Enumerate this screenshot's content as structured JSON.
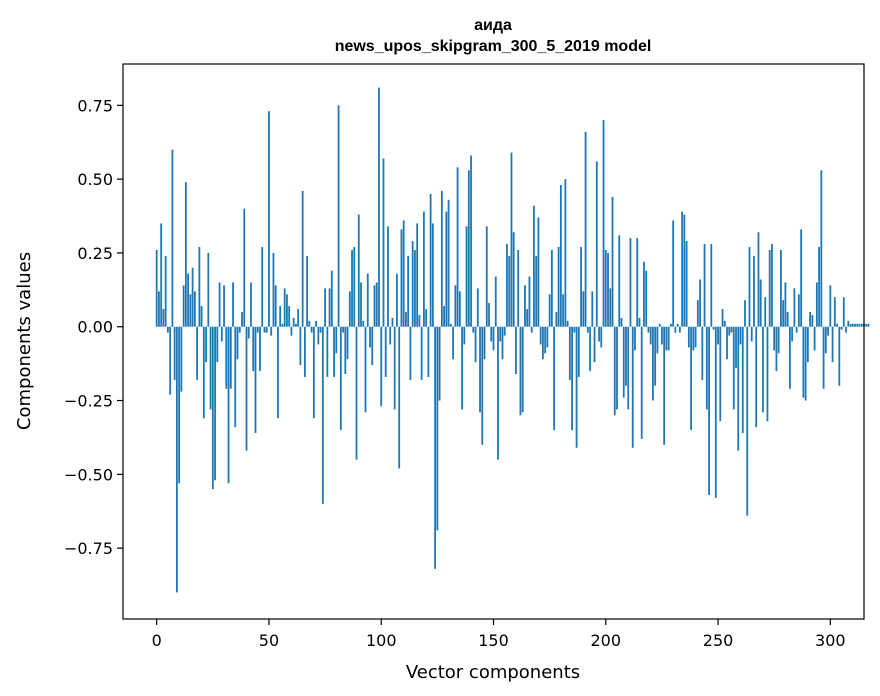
{
  "chart_data": {
    "type": "bar",
    "title": "аида",
    "subtitle": "news_upos_skipgram_300_5_2019 model",
    "xlabel": "Vector components",
    "ylabel": "Components values",
    "xlim": [
      -15,
      315
    ],
    "ylim": [
      -0.99,
      0.89
    ],
    "xticks": [
      0,
      50,
      100,
      150,
      200,
      250,
      300
    ],
    "yticks": [
      0.75,
      0.5,
      0.25,
      0.0,
      -0.25,
      -0.5,
      -0.75
    ],
    "ytick_labels": [
      "0.75",
      "0.50",
      "0.25",
      "0.00",
      "−0.25",
      "−0.50",
      "−0.75"
    ],
    "xtick_labels": [
      "0",
      "50",
      "100",
      "150",
      "200",
      "250",
      "300"
    ],
    "color": "#1f77b4",
    "values": [
      0.26,
      0.12,
      0.35,
      0.06,
      0.24,
      -0.02,
      -0.23,
      0.6,
      -0.18,
      -0.9,
      -0.53,
      -0.22,
      0.14,
      0.49,
      0.18,
      0.11,
      0.2,
      0.12,
      -0.18,
      0.27,
      0.07,
      -0.31,
      -0.12,
      0.25,
      -0.28,
      -0.55,
      -0.52,
      -0.12,
      0.15,
      -0.05,
      0.14,
      -0.21,
      -0.53,
      -0.21,
      0.15,
      -0.34,
      -0.11,
      -0.02,
      0.05,
      0.4,
      -0.42,
      -0.04,
      0.15,
      -0.15,
      -0.36,
      -0.02,
      -0.15,
      0.27,
      -0.02,
      -0.02,
      0.73,
      -0.03,
      0.25,
      0.14,
      -0.31,
      0.07,
      0.01,
      0.13,
      0.11,
      0.07,
      -0.03,
      0.03,
      0.01,
      0.06,
      -0.13,
      0.46,
      -0.17,
      0.24,
      0.02,
      -0.02,
      -0.31,
      0.02,
      -0.06,
      -0.02,
      -0.6,
      0.13,
      -0.17,
      0.13,
      0.19,
      -0.17,
      -0.09,
      0.75,
      -0.35,
      -0.02,
      -0.16,
      -0.11,
      0.12,
      0.26,
      0.27,
      -0.45,
      0.38,
      0.15,
      0.02,
      -0.29,
      0.18,
      -0.07,
      -0.13,
      0.14,
      0.15,
      0.81,
      -0.27,
      0.57,
      -0.17,
      0.34,
      -0.06,
      0.03,
      -0.28,
      0.18,
      -0.48,
      0.33,
      0.36,
      0.05,
      0.24,
      -0.18,
      0.29,
      0.26,
      0.35,
      0.04,
      -0.18,
      0.39,
      0.06,
      -0.17,
      0.45,
      0.35,
      -0.82,
      -0.69,
      -0.25,
      0.46,
      0.07,
      0.39,
      0.43,
      0.01,
      -0.11,
      0.14,
      0.54,
      0.12,
      -0.28,
      -0.06,
      0.34,
      0.53,
      0.58,
      -0.02,
      -0.12,
      0.13,
      -0.29,
      -0.4,
      -0.11,
      0.34,
      0.08,
      -0.05,
      -0.08,
      0.17,
      -0.45,
      -0.05,
      -0.11,
      -0.03,
      0.28,
      0.24,
      0.59,
      0.32,
      -0.16,
      0.26,
      -0.3,
      -0.29,
      0.14,
      0.06,
      0.17,
      -0.02,
      0.41,
      0.24,
      0.37,
      -0.06,
      -0.11,
      -0.09,
      -0.07,
      0.11,
      0.26,
      -0.35,
      0.05,
      0.27,
      0.48,
      0.11,
      0.5,
      0.02,
      -0.18,
      -0.35,
      -0.02,
      -0.41,
      -0.17,
      0.27,
      0.12,
      0.66,
      -0.02,
      -0.15,
      0.12,
      -0.12,
      0.56,
      -0.05,
      -0.07,
      0.7,
      0.26,
      0.25,
      0.13,
      0.44,
      -0.3,
      -0.28,
      0.31,
      0.03,
      -0.24,
      -0.2,
      -0.28,
      0.3,
      -0.41,
      -0.08,
      0.3,
      0.03,
      -0.38,
      0.22,
      0.19,
      -0.02,
      -0.06,
      -0.25,
      -0.2,
      -0.09,
      0.01,
      -0.06,
      -0.4,
      -0.08,
      -0.08,
      0.01,
      0.36,
      -0.02,
      0.01,
      -0.02,
      0.39,
      0.38,
      0.29,
      -0.07,
      -0.35,
      -0.08,
      -0.07,
      0.09,
      0.16,
      -0.18,
      0.28,
      -0.28,
      -0.57,
      0.28,
      -0.01,
      -0.58,
      -0.06,
      -0.32,
      0.06,
      0.02,
      -0.11,
      -0.03,
      -0.02,
      -0.28,
      -0.14,
      -0.42,
      -0.06,
      -0.36,
      0.09,
      -0.64,
      0.27,
      -0.05,
      0.24,
      -0.34,
      0.32,
      0.16,
      -0.29,
      0.1,
      -0.32,
      0.26,
      0.28,
      -0.08,
      -0.15,
      -0.09,
      0.26,
      0.09,
      0.15,
      0.05,
      -0.21,
      -0.05,
      0.13,
      -0.02,
      0.11,
      0.33,
      -0.24,
      -0.25,
      -0.12,
      0.05,
      0.04,
      -0.08,
      0.15,
      0.27,
      0.53,
      -0.21,
      -0.09,
      -0.03,
      0.14,
      -0.12,
      0.1,
      0.01,
      -0.2,
      -0.01,
      0.1,
      -0.02,
      0.02,
      0.01,
      0.01,
      0.01,
      0.01,
      0.01,
      0.01,
      0.01,
      0.01,
      0.01
    ]
  }
}
